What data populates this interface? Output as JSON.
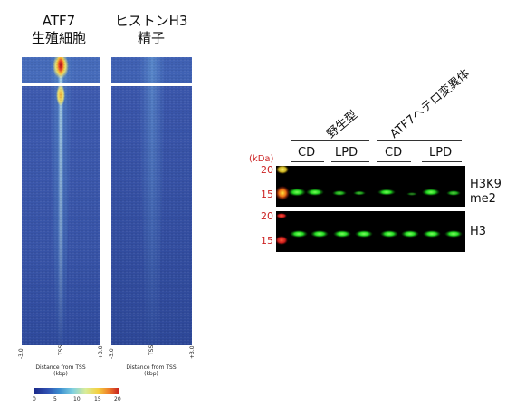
{
  "heatmaps": {
    "left_title_line1": "ATF7",
    "left_title_line2": "生殖細胞",
    "right_title_line1": "ヒストンH3",
    "right_title_line2": "精子",
    "x_ticks": [
      "-3.0",
      "TSS",
      "+3.0"
    ],
    "x_label_line1": "Distance from TSS",
    "x_label_line2": "(kbp)"
  },
  "colorbar": {
    "ticks": [
      "0",
      "5",
      "10",
      "15",
      "20"
    ]
  },
  "blot": {
    "group_wildtype": "野生型",
    "group_mutant": "ATF7ヘテロ変異体",
    "conditions": [
      "CD",
      "LPD",
      "CD",
      "LPD"
    ],
    "kda_label": "(kDa)",
    "markers_top": [
      "20",
      "15"
    ],
    "markers_bottom": [
      "20",
      "15"
    ],
    "band_top_line1": "H3K9",
    "band_top_line2": "me2",
    "band_bottom": "H3"
  },
  "colors": {
    "heatmap_bg": "#3a55a8",
    "heatmap_hot": "#d7262e",
    "band_green": "#2ee02e",
    "marker_red": "#cc2222"
  }
}
